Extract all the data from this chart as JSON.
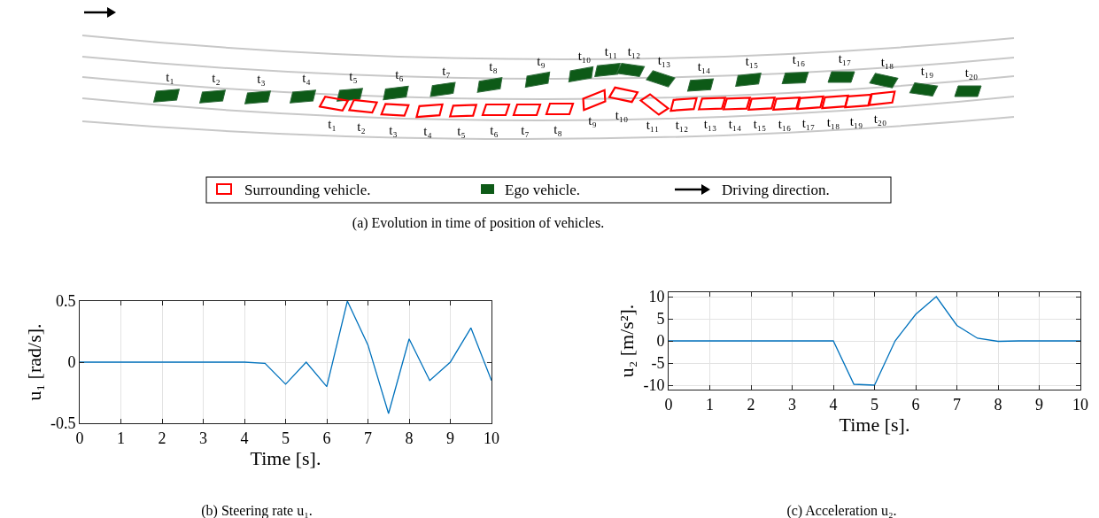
{
  "chart_data": [
    {
      "type": "other",
      "title": "(a) Evolution in time of position of vehicles.",
      "annotations": [
        "t₁",
        "t₂",
        "t₃",
        "t₄",
        "t₅",
        "t₆",
        "t₇",
        "t₈",
        "t₉",
        "t₁₀",
        "t₁₁",
        "t₁₂",
        "t₁₃",
        "t₁₄",
        "t₁₅",
        "t₁₆",
        "t₁₇",
        "t₁₈",
        "t₁₉",
        "t₂₀",
        "t₁",
        "t₂",
        "t₃",
        "t₄",
        "t₅",
        "t₆",
        "t₇",
        "t₈",
        "t₉",
        "t₁₀",
        "t₁₁",
        "t₁₂",
        "t₁₃",
        "t₁₄",
        "t₁₅",
        "t₁₆",
        "t₁₇",
        "t₁₈",
        "t₁₉",
        "t₂₀",
        "Surrounding vehicle.",
        "Ego vehicle.",
        "Driving direction."
      ]
    },
    {
      "type": "line",
      "title": "(b) Steering rate u₁.",
      "xlabel": "Time [s].",
      "ylabel": "u₁ [rad/s].",
      "color": "#0072bd",
      "grid": true,
      "x": [
        0,
        0.5,
        1,
        1.5,
        2,
        2.5,
        3,
        3.5,
        4,
        4.5,
        5,
        5.5,
        6,
        6.5,
        7,
        7.5,
        8,
        8.5,
        9,
        9.5,
        10
      ],
      "values": [
        0,
        0,
        0,
        0,
        0,
        0,
        0,
        0,
        0,
        -0.01,
        -0.18,
        0,
        -0.2,
        0.5,
        0.14,
        -0.42,
        0.19,
        -0.15,
        0,
        0.28,
        -0.15
      ],
      "xlim": [
        0,
        10
      ],
      "xticks": [
        0,
        1,
        2,
        3,
        4,
        5,
        6,
        7,
        8,
        9,
        10
      ],
      "ylim": [
        -0.5,
        0.5
      ],
      "yticks": [
        -0.5,
        0,
        0.5
      ]
    },
    {
      "type": "line",
      "title": "(c) Acceleration u₂.",
      "xlabel": "Time [s].",
      "ylabel": "u₂ [m/s²].",
      "color": "#0072bd",
      "grid": true,
      "x": [
        0,
        0.5,
        1,
        1.5,
        2,
        2.5,
        3,
        3.5,
        4,
        4.5,
        5,
        5.5,
        6,
        6.5,
        7,
        7.5,
        8,
        8.5,
        9,
        9.5,
        10
      ],
      "values": [
        0,
        0,
        0,
        0,
        0,
        0,
        0,
        0,
        0,
        -9.8,
        -10,
        0,
        6,
        10,
        3.5,
        0.6,
        -0.1,
        0,
        0,
        0,
        0
      ],
      "xlim": [
        0,
        10
      ],
      "xticks": [
        0,
        1,
        2,
        3,
        4,
        5,
        6,
        7,
        8,
        9,
        10
      ],
      "ylim": [
        -11,
        11
      ],
      "yticks": [
        -10,
        -5,
        0,
        5,
        10
      ]
    }
  ]
}
